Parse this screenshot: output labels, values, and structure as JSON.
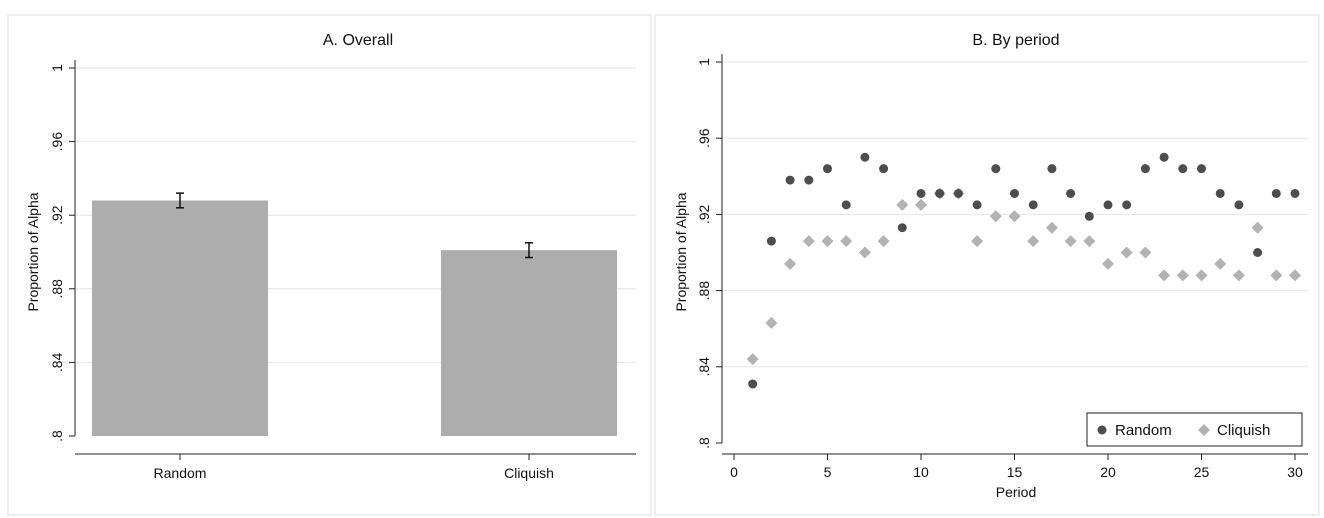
{
  "colors": {
    "background": "#ffffff",
    "panel_border": "#e9e9e9",
    "grid": "#e6e6e6",
    "axis": "#222222",
    "bar_fill": "#adadad",
    "random_marker": "#4d4d4d",
    "cliquish_marker": "#b2b2b2"
  },
  "chart_data": [
    {
      "type": "bar",
      "title": "A. Overall",
      "ylabel": "Proportion of Alpha",
      "xlabel": "",
      "categories": [
        "Random",
        "Cliquish"
      ],
      "values": [
        0.928,
        0.901
      ],
      "error_low": [
        0.924,
        0.897
      ],
      "error_high": [
        0.932,
        0.905
      ],
      "ylim": [
        0.8,
        1.0
      ],
      "yticks": [
        0.8,
        0.84,
        0.88,
        0.92,
        0.96,
        1
      ],
      "ytick_labels": [
        ".8",
        ".84",
        ".88",
        ".92",
        ".96",
        "1"
      ],
      "grid": true
    },
    {
      "type": "scatter",
      "title": "B. By period",
      "ylabel": "Proportion of Alpha",
      "xlabel": "Period",
      "ylim": [
        0.8,
        1.0
      ],
      "xlim": [
        0,
        30
      ],
      "yticks": [
        0.8,
        0.84,
        0.88,
        0.92,
        0.96,
        1
      ],
      "ytick_labels": [
        ".8",
        ".84",
        ".88",
        ".92",
        ".96",
        "1"
      ],
      "xticks": [
        0,
        5,
        10,
        15,
        20,
        25,
        30
      ],
      "xtick_labels": [
        "0",
        "5",
        "10",
        "15",
        "20",
        "25",
        "30"
      ],
      "grid": true,
      "legend_position": "bottom-right",
      "series": [
        {
          "name": "Random",
          "marker": "circle",
          "x": [
            1,
            2,
            3,
            4,
            5,
            6,
            7,
            8,
            9,
            10,
            11,
            12,
            13,
            14,
            15,
            16,
            17,
            18,
            19,
            20,
            21,
            22,
            23,
            24,
            25,
            26,
            27,
            28,
            29,
            30
          ],
          "y": [
            0.831,
            0.906,
            0.938,
            0.938,
            0.944,
            0.925,
            0.95,
            0.944,
            0.913,
            0.931,
            0.931,
            0.931,
            0.925,
            0.944,
            0.931,
            0.925,
            0.944,
            0.931,
            0.919,
            0.925,
            0.925,
            0.944,
            0.95,
            0.944,
            0.944,
            0.931,
            0.925,
            0.9,
            0.931,
            0.931
          ]
        },
        {
          "name": "Cliquish",
          "marker": "diamond",
          "x": [
            1,
            2,
            3,
            4,
            5,
            6,
            7,
            8,
            9,
            10,
            11,
            12,
            13,
            14,
            15,
            16,
            17,
            18,
            19,
            20,
            21,
            22,
            23,
            24,
            25,
            26,
            27,
            28,
            29,
            30
          ],
          "y": [
            0.844,
            0.863,
            0.894,
            0.906,
            0.906,
            0.906,
            0.9,
            0.906,
            0.925,
            0.925,
            0.931,
            0.931,
            0.906,
            0.919,
            0.919,
            0.906,
            0.913,
            0.906,
            0.906,
            0.894,
            0.9,
            0.9,
            0.888,
            0.888,
            0.888,
            0.894,
            0.888,
            0.913,
            0.888,
            0.888
          ]
        }
      ]
    }
  ]
}
